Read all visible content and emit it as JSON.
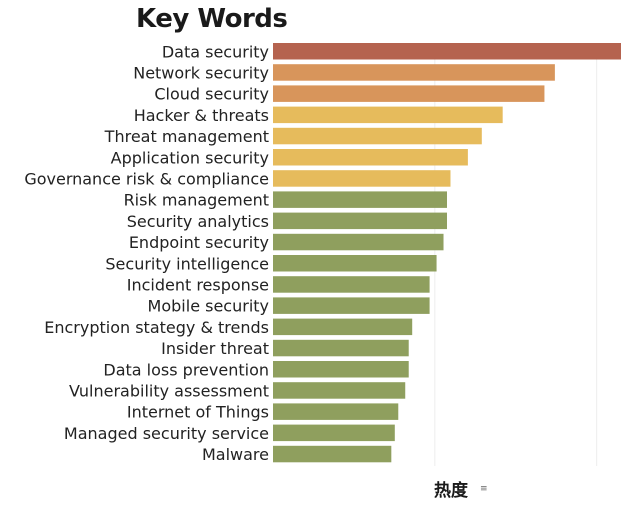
{
  "chart_data": {
    "type": "bar",
    "orientation": "horizontal",
    "title": "Key Words",
    "xlabel": "热度",
    "ylabel": "",
    "grid": true,
    "xlim": [
      0,
      100
    ],
    "categories": [
      "Data security",
      "Network security",
      "Cloud security",
      "Hacker & threats",
      "Threat management",
      "Application security",
      "Governance risk & compliance",
      "Risk management",
      "Security analytics",
      "Endpoint security",
      "Security intelligence",
      "Incident response",
      "Mobile security",
      "Encryption stategy & trends",
      "Insider threat",
      "Data loss prevention",
      "Vulnerability assessment",
      "Internet of Things",
      "Managed security service",
      "Malware"
    ],
    "values": [
      100,
      81,
      78,
      66,
      60,
      56,
      51,
      50,
      50,
      49,
      47,
      45,
      45,
      40,
      39,
      39,
      38,
      36,
      35,
      34
    ],
    "colors": [
      "#b5634f",
      "#d8955b",
      "#d8955b",
      "#e6bb5c",
      "#e6bb5c",
      "#e6bb5c",
      "#e6bb5c",
      "#8f9f5e",
      "#8f9f5e",
      "#8f9f5e",
      "#8f9f5e",
      "#8f9f5e",
      "#8f9f5e",
      "#8f9f5e",
      "#8f9f5e",
      "#8f9f5e",
      "#8f9f5e",
      "#8f9f5e",
      "#8f9f5e",
      "#8f9f5e"
    ]
  },
  "icons": {
    "sort": "sort-icon"
  }
}
